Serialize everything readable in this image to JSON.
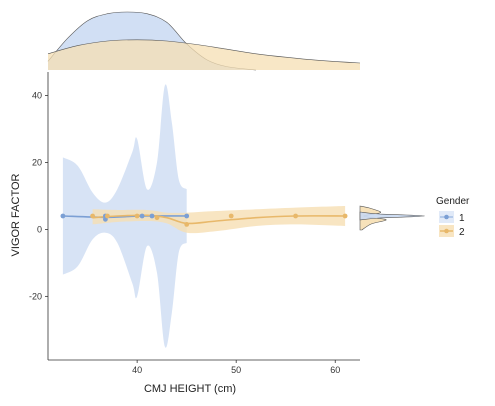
{
  "chart_data": {
    "type": "line",
    "xlabel": "CMJ HEIGHT (cm)",
    "ylabel": "VIGOR FACTOR",
    "xlim": [
      31,
      62.5
    ],
    "ylim": [
      -39,
      47
    ],
    "x_ticks": [
      40,
      50,
      60
    ],
    "y_ticks": [
      40,
      20,
      0,
      -20
    ],
    "x_tick_labels": [
      "40",
      "50",
      "60"
    ],
    "y_tick_labels": [
      "40",
      "20",
      "0",
      "-20"
    ],
    "grid": false,
    "legend": {
      "title": "Gender",
      "position": "right"
    },
    "series": [
      {
        "name": "1",
        "color": "#7b9fd4",
        "fill": "#c9d9f2",
        "points_x": [
          32.5,
          36.8,
          36.8,
          40.5,
          41.5,
          45
        ],
        "points_y": [
          4,
          3,
          4,
          4,
          4,
          4
        ],
        "line_x": [
          32.5,
          36.8,
          40.5,
          45
        ],
        "line_y": [
          4,
          3.6,
          4,
          4
        ],
        "ci_x": [
          32.5,
          34,
          35.5,
          36.8,
          38,
          39.5,
          40,
          41,
          42,
          42.8,
          43.5,
          44.2,
          45
        ],
        "ci_upper": [
          21.5,
          19,
          11,
          8,
          12,
          23,
          27,
          12,
          20,
          43,
          32,
          15,
          12
        ],
        "ci_lower": [
          -13.5,
          -11,
          -3,
          -1,
          -4,
          -16,
          -20,
          -5,
          -13,
          -35,
          -25,
          -7,
          -4
        ],
        "marginal_x_density": [
          [
            31,
            0.15
          ],
          [
            33,
            0.55
          ],
          [
            35,
            0.85
          ],
          [
            37,
            0.97
          ],
          [
            39,
            1.0
          ],
          [
            41,
            0.97
          ],
          [
            43,
            0.82
          ],
          [
            45,
            0.45
          ],
          [
            47,
            0.18
          ],
          [
            49,
            0.06
          ],
          [
            52,
            0.0
          ]
        ]
      },
      {
        "name": "2",
        "color": "#e8b86a",
        "fill": "#f6dfb3",
        "points_x": [
          35.5,
          37,
          40,
          42,
          45,
          49.5,
          56,
          61
        ],
        "points_y": [
          4,
          4,
          4,
          3.5,
          1.5,
          4,
          4,
          4
        ],
        "line_x": [
          35.5,
          38,
          41,
          43,
          45,
          48,
          52,
          56,
          61
        ],
        "line_y": [
          3.5,
          4,
          4.2,
          3.5,
          1.8,
          2.5,
          3.5,
          4,
          4
        ],
        "ci_x": [
          35.5,
          38,
          41,
          43,
          45,
          48,
          52,
          56,
          61
        ],
        "ci_upper": [
          6,
          5.8,
          5.8,
          5,
          5,
          5.5,
          6,
          6.5,
          7
        ],
        "ci_lower": [
          1.5,
          2.2,
          2.5,
          1.8,
          -1,
          -0.5,
          1,
          1.5,
          1
        ],
        "marginal_x_density": [
          [
            31,
            0.28
          ],
          [
            34,
            0.42
          ],
          [
            37,
            0.5
          ],
          [
            40,
            0.52
          ],
          [
            43,
            0.5
          ],
          [
            46,
            0.44
          ],
          [
            49,
            0.36
          ],
          [
            52,
            0.28
          ],
          [
            55,
            0.22
          ],
          [
            58,
            0.17
          ],
          [
            62.5,
            0.12
          ]
        ]
      }
    ]
  }
}
